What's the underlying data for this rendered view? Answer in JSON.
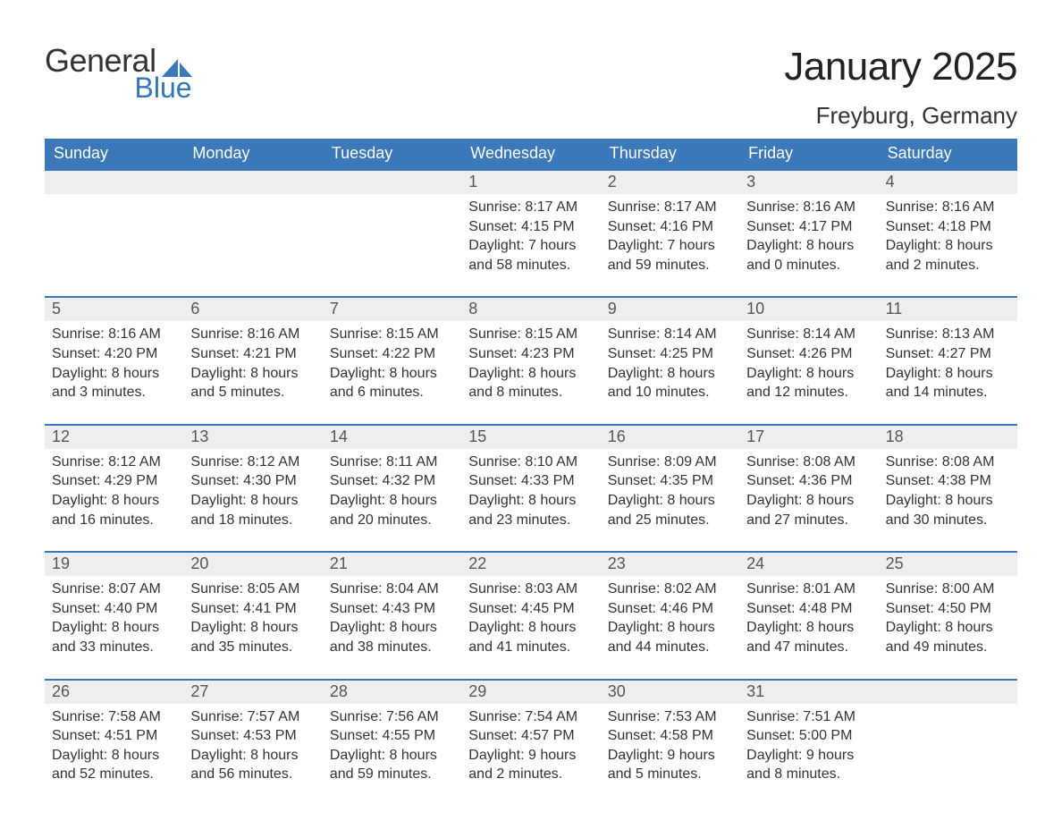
{
  "logo": {
    "line1": "General",
    "line2": "Blue",
    "text_color": "#333333",
    "blue_color": "#3275b8",
    "sail_color": "#3a78b9"
  },
  "title": {
    "month": "January 2025",
    "location": "Freyburg, Germany",
    "month_fontsize": 44,
    "location_fontsize": 26
  },
  "colors": {
    "header_bg": "#3a78b9",
    "header_text": "#ffffff",
    "daynum_band_bg": "#eeeeee",
    "week_divider": "#3a78b9",
    "body_text": "#333333",
    "page_bg": "#ffffff"
  },
  "fonts": {
    "family": "Arial, Helvetica, sans-serif",
    "dow_size": 18,
    "daynum_size": 18,
    "body_size": 16
  },
  "days_of_week": [
    "Sunday",
    "Monday",
    "Tuesday",
    "Wednesday",
    "Thursday",
    "Friday",
    "Saturday"
  ],
  "weeks": [
    [
      {
        "day": "",
        "sunrise": "",
        "sunset": "",
        "daylight1": "",
        "daylight2": ""
      },
      {
        "day": "",
        "sunrise": "",
        "sunset": "",
        "daylight1": "",
        "daylight2": ""
      },
      {
        "day": "",
        "sunrise": "",
        "sunset": "",
        "daylight1": "",
        "daylight2": ""
      },
      {
        "day": "1",
        "sunrise": "Sunrise: 8:17 AM",
        "sunset": "Sunset: 4:15 PM",
        "daylight1": "Daylight: 7 hours",
        "daylight2": "and 58 minutes."
      },
      {
        "day": "2",
        "sunrise": "Sunrise: 8:17 AM",
        "sunset": "Sunset: 4:16 PM",
        "daylight1": "Daylight: 7 hours",
        "daylight2": "and 59 minutes."
      },
      {
        "day": "3",
        "sunrise": "Sunrise: 8:16 AM",
        "sunset": "Sunset: 4:17 PM",
        "daylight1": "Daylight: 8 hours",
        "daylight2": "and 0 minutes."
      },
      {
        "day": "4",
        "sunrise": "Sunrise: 8:16 AM",
        "sunset": "Sunset: 4:18 PM",
        "daylight1": "Daylight: 8 hours",
        "daylight2": "and 2 minutes."
      }
    ],
    [
      {
        "day": "5",
        "sunrise": "Sunrise: 8:16 AM",
        "sunset": "Sunset: 4:20 PM",
        "daylight1": "Daylight: 8 hours",
        "daylight2": "and 3 minutes."
      },
      {
        "day": "6",
        "sunrise": "Sunrise: 8:16 AM",
        "sunset": "Sunset: 4:21 PM",
        "daylight1": "Daylight: 8 hours",
        "daylight2": "and 5 minutes."
      },
      {
        "day": "7",
        "sunrise": "Sunrise: 8:15 AM",
        "sunset": "Sunset: 4:22 PM",
        "daylight1": "Daylight: 8 hours",
        "daylight2": "and 6 minutes."
      },
      {
        "day": "8",
        "sunrise": "Sunrise: 8:15 AM",
        "sunset": "Sunset: 4:23 PM",
        "daylight1": "Daylight: 8 hours",
        "daylight2": "and 8 minutes."
      },
      {
        "day": "9",
        "sunrise": "Sunrise: 8:14 AM",
        "sunset": "Sunset: 4:25 PM",
        "daylight1": "Daylight: 8 hours",
        "daylight2": "and 10 minutes."
      },
      {
        "day": "10",
        "sunrise": "Sunrise: 8:14 AM",
        "sunset": "Sunset: 4:26 PM",
        "daylight1": "Daylight: 8 hours",
        "daylight2": "and 12 minutes."
      },
      {
        "day": "11",
        "sunrise": "Sunrise: 8:13 AM",
        "sunset": "Sunset: 4:27 PM",
        "daylight1": "Daylight: 8 hours",
        "daylight2": "and 14 minutes."
      }
    ],
    [
      {
        "day": "12",
        "sunrise": "Sunrise: 8:12 AM",
        "sunset": "Sunset: 4:29 PM",
        "daylight1": "Daylight: 8 hours",
        "daylight2": "and 16 minutes."
      },
      {
        "day": "13",
        "sunrise": "Sunrise: 8:12 AM",
        "sunset": "Sunset: 4:30 PM",
        "daylight1": "Daylight: 8 hours",
        "daylight2": "and 18 minutes."
      },
      {
        "day": "14",
        "sunrise": "Sunrise: 8:11 AM",
        "sunset": "Sunset: 4:32 PM",
        "daylight1": "Daylight: 8 hours",
        "daylight2": "and 20 minutes."
      },
      {
        "day": "15",
        "sunrise": "Sunrise: 8:10 AM",
        "sunset": "Sunset: 4:33 PM",
        "daylight1": "Daylight: 8 hours",
        "daylight2": "and 23 minutes."
      },
      {
        "day": "16",
        "sunrise": "Sunrise: 8:09 AM",
        "sunset": "Sunset: 4:35 PM",
        "daylight1": "Daylight: 8 hours",
        "daylight2": "and 25 minutes."
      },
      {
        "day": "17",
        "sunrise": "Sunrise: 8:08 AM",
        "sunset": "Sunset: 4:36 PM",
        "daylight1": "Daylight: 8 hours",
        "daylight2": "and 27 minutes."
      },
      {
        "day": "18",
        "sunrise": "Sunrise: 8:08 AM",
        "sunset": "Sunset: 4:38 PM",
        "daylight1": "Daylight: 8 hours",
        "daylight2": "and 30 minutes."
      }
    ],
    [
      {
        "day": "19",
        "sunrise": "Sunrise: 8:07 AM",
        "sunset": "Sunset: 4:40 PM",
        "daylight1": "Daylight: 8 hours",
        "daylight2": "and 33 minutes."
      },
      {
        "day": "20",
        "sunrise": "Sunrise: 8:05 AM",
        "sunset": "Sunset: 4:41 PM",
        "daylight1": "Daylight: 8 hours",
        "daylight2": "and 35 minutes."
      },
      {
        "day": "21",
        "sunrise": "Sunrise: 8:04 AM",
        "sunset": "Sunset: 4:43 PM",
        "daylight1": "Daylight: 8 hours",
        "daylight2": "and 38 minutes."
      },
      {
        "day": "22",
        "sunrise": "Sunrise: 8:03 AM",
        "sunset": "Sunset: 4:45 PM",
        "daylight1": "Daylight: 8 hours",
        "daylight2": "and 41 minutes."
      },
      {
        "day": "23",
        "sunrise": "Sunrise: 8:02 AM",
        "sunset": "Sunset: 4:46 PM",
        "daylight1": "Daylight: 8 hours",
        "daylight2": "and 44 minutes."
      },
      {
        "day": "24",
        "sunrise": "Sunrise: 8:01 AM",
        "sunset": "Sunset: 4:48 PM",
        "daylight1": "Daylight: 8 hours",
        "daylight2": "and 47 minutes."
      },
      {
        "day": "25",
        "sunrise": "Sunrise: 8:00 AM",
        "sunset": "Sunset: 4:50 PM",
        "daylight1": "Daylight: 8 hours",
        "daylight2": "and 49 minutes."
      }
    ],
    [
      {
        "day": "26",
        "sunrise": "Sunrise: 7:58 AM",
        "sunset": "Sunset: 4:51 PM",
        "daylight1": "Daylight: 8 hours",
        "daylight2": "and 52 minutes."
      },
      {
        "day": "27",
        "sunrise": "Sunrise: 7:57 AM",
        "sunset": "Sunset: 4:53 PM",
        "daylight1": "Daylight: 8 hours",
        "daylight2": "and 56 minutes."
      },
      {
        "day": "28",
        "sunrise": "Sunrise: 7:56 AM",
        "sunset": "Sunset: 4:55 PM",
        "daylight1": "Daylight: 8 hours",
        "daylight2": "and 59 minutes."
      },
      {
        "day": "29",
        "sunrise": "Sunrise: 7:54 AM",
        "sunset": "Sunset: 4:57 PM",
        "daylight1": "Daylight: 9 hours",
        "daylight2": "and 2 minutes."
      },
      {
        "day": "30",
        "sunrise": "Sunrise: 7:53 AM",
        "sunset": "Sunset: 4:58 PM",
        "daylight1": "Daylight: 9 hours",
        "daylight2": "and 5 minutes."
      },
      {
        "day": "31",
        "sunrise": "Sunrise: 7:51 AM",
        "sunset": "Sunset: 5:00 PM",
        "daylight1": "Daylight: 9 hours",
        "daylight2": "and 8 minutes."
      },
      {
        "day": "",
        "sunrise": "",
        "sunset": "",
        "daylight1": "",
        "daylight2": ""
      }
    ]
  ]
}
